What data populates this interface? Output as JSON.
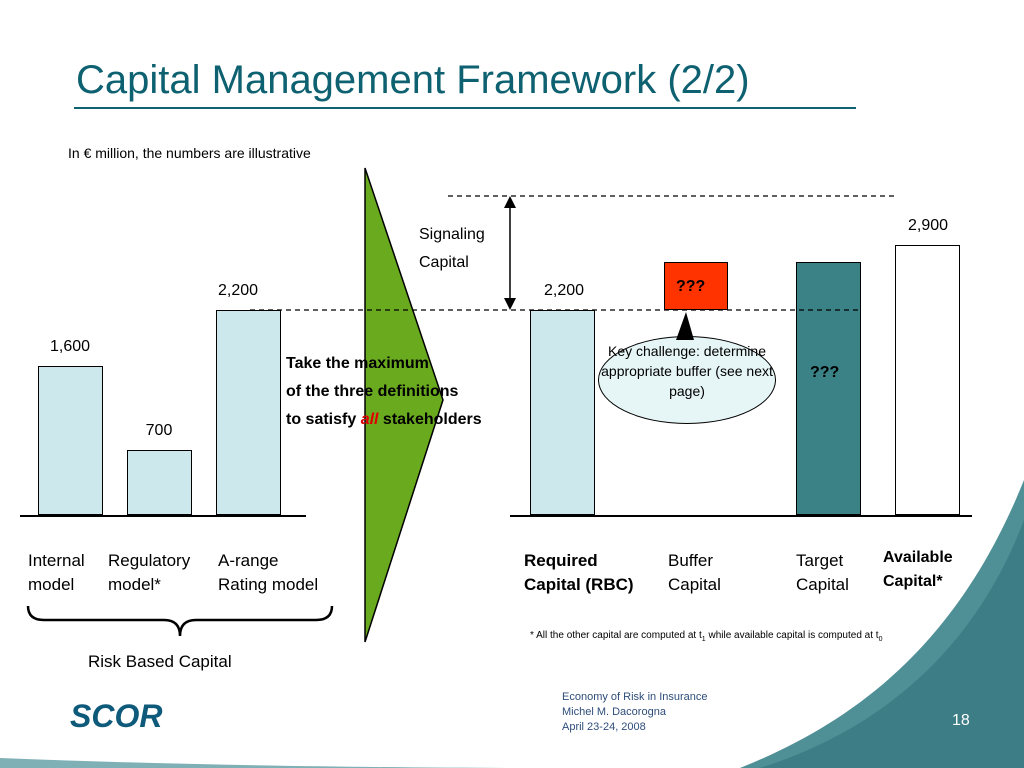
{
  "slide": {
    "title": "Capital Management Framework (2/2)",
    "page_number": "18"
  },
  "chart_data": {
    "type": "bar",
    "subtitle": "In € million, the numbers are illustrative",
    "left_group": {
      "categories": [
        "Internal model",
        "Regulatory model*",
        "A-range Rating model"
      ],
      "values": [
        1600,
        700,
        2200
      ],
      "value_labels": [
        "1,600",
        "700",
        "2,200"
      ],
      "group_label": "Risk Based Capital"
    },
    "right_group": {
      "categories": [
        "Required Capital (RBC)",
        "Buffer Capital",
        "Target Capital",
        "Available Capital*"
      ],
      "required_value": 2200,
      "required_value_label": "2,200",
      "available_value": 2900,
      "available_value_label": "2,900",
      "unknown_label": "???"
    },
    "colors": {
      "light_bar": "#cce8ec",
      "target_bar": "#3a8286",
      "buffer_box": "#ff3300",
      "arrow": "#6aaa1f"
    }
  },
  "labels": {
    "arrow_line1": "Take the maximum",
    "arrow_line2": "of the three definitions",
    "arrow_line3_pre": "to satisfy ",
    "arrow_line3_em": "all",
    "arrow_line3_post": " stakeholders",
    "signaling_line1": "Signaling",
    "signaling_line2": "Capital",
    "key_challenge": "Key challenge: determine appropriate buffer (see next page)",
    "cat_internal_1": "Internal",
    "cat_internal_2": "model",
    "cat_regulatory_1": "Regulatory",
    "cat_regulatory_2": "model*",
    "cat_arange_1": "A-range",
    "cat_arange_2": "Rating model",
    "cat_required_1": "Required",
    "cat_required_2": "Capital (RBC)",
    "cat_buffer_1": "Buffer",
    "cat_buffer_2": "Capital",
    "cat_target_1": "Target",
    "cat_target_2": "Capital",
    "cat_available_1": "Available",
    "cat_available_2": "Capital*",
    "footnote_pre": "* All the other capital are computed at t",
    "footnote_sub1": "1",
    "footnote_mid": " while available capital is computed at t",
    "footnote_sub2": "0"
  },
  "footer": {
    "line1": "Economy of Risk in Insurance",
    "line2": "Michel M. Dacorogna",
    "line3": "April 23-24, 2008",
    "logo_text": "SCOR"
  }
}
